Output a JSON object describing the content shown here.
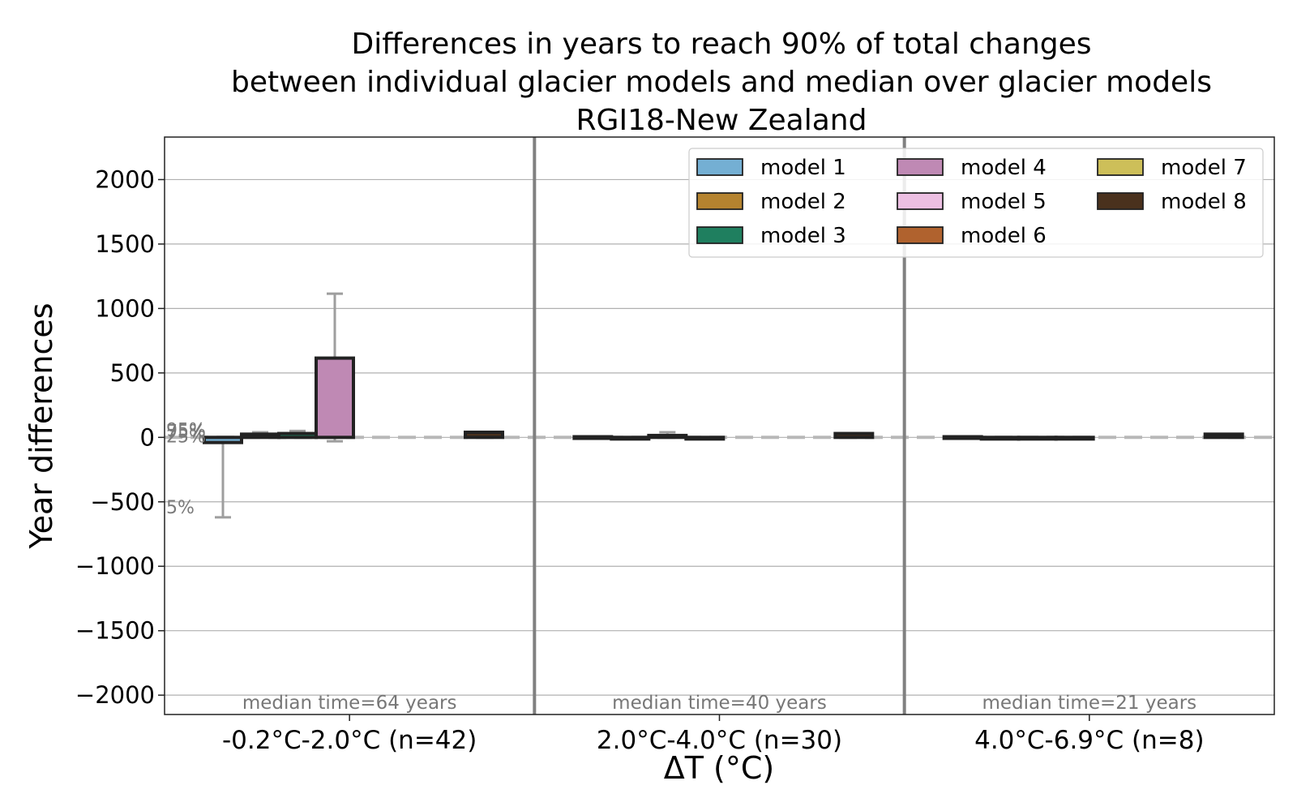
{
  "chart_data": {
    "type": "bar",
    "title_lines": [
      "Differences in years to reach 90% of total changes",
      "between individual glacier models and median over glacier models",
      "RGI18-New Zealand"
    ],
    "xlabel": "ΔT (°C)",
    "ylabel": "Year differences",
    "ylim": [
      -2150,
      2330
    ],
    "yticks": [
      2000,
      1500,
      1000,
      500,
      0,
      -500,
      -1000,
      -1500,
      -2000
    ],
    "ytick_labels": [
      "2000",
      "1500",
      "1000",
      "500",
      "0",
      "−500",
      "−1000",
      "−1500",
      "−2000"
    ],
    "grid": true,
    "legend_position": "top-right",
    "categories": [
      "-0.2°C-2.0°C (n=42)",
      "2.0°C-4.0°C (n=30)",
      "4.0°C-6.9°C (n=8)"
    ],
    "median_notes": [
      "median time=64 years",
      "median time=40 years",
      "median time=21 years"
    ],
    "percentile_labels": [
      "95%",
      "75%",
      "25%",
      "5%"
    ],
    "series": [
      {
        "name": "model 1",
        "color": "#74afd3",
        "values": [
          -40,
          5,
          5
        ],
        "whisker_low": [
          -620,
          null,
          null
        ],
        "whisker_high": [
          null,
          null,
          null
        ]
      },
      {
        "name": "model 2",
        "color": "#b5832f",
        "values": [
          25,
          -5,
          -5
        ],
        "whisker_low": [
          null,
          null,
          null
        ],
        "whisker_high": [
          40,
          null,
          null
        ]
      },
      {
        "name": "model 3",
        "color": "#1f7f5f",
        "values": [
          30,
          15,
          0
        ],
        "whisker_low": [
          null,
          null,
          null
        ],
        "whisker_high": [
          50,
          40,
          null
        ]
      },
      {
        "name": "model 4",
        "color": "#bf89b4",
        "values": [
          615,
          -10,
          0
        ],
        "whisker_low": [
          -30,
          null,
          null
        ],
        "whisker_high": [
          1115,
          null,
          null
        ]
      },
      {
        "name": "model 5",
        "color": "#ecbfe2",
        "values": [
          null,
          null,
          null
        ],
        "whisker_low": [
          null,
          null,
          null
        ],
        "whisker_high": [
          null,
          null,
          null
        ]
      },
      {
        "name": "model 6",
        "color": "#b0622e",
        "values": [
          null,
          null,
          null
        ],
        "whisker_low": [
          null,
          null,
          null
        ],
        "whisker_high": [
          null,
          null,
          null
        ]
      },
      {
        "name": "model 7",
        "color": "#cdbf59",
        "values": [
          null,
          null,
          null
        ],
        "whisker_low": [
          null,
          null,
          null
        ],
        "whisker_high": [
          null,
          null,
          null
        ]
      },
      {
        "name": "model 8",
        "color": "#4a311d",
        "values": [
          40,
          30,
          25
        ],
        "whisker_low": [
          null,
          null,
          null
        ],
        "whisker_high": [
          null,
          null,
          null
        ]
      }
    ]
  }
}
